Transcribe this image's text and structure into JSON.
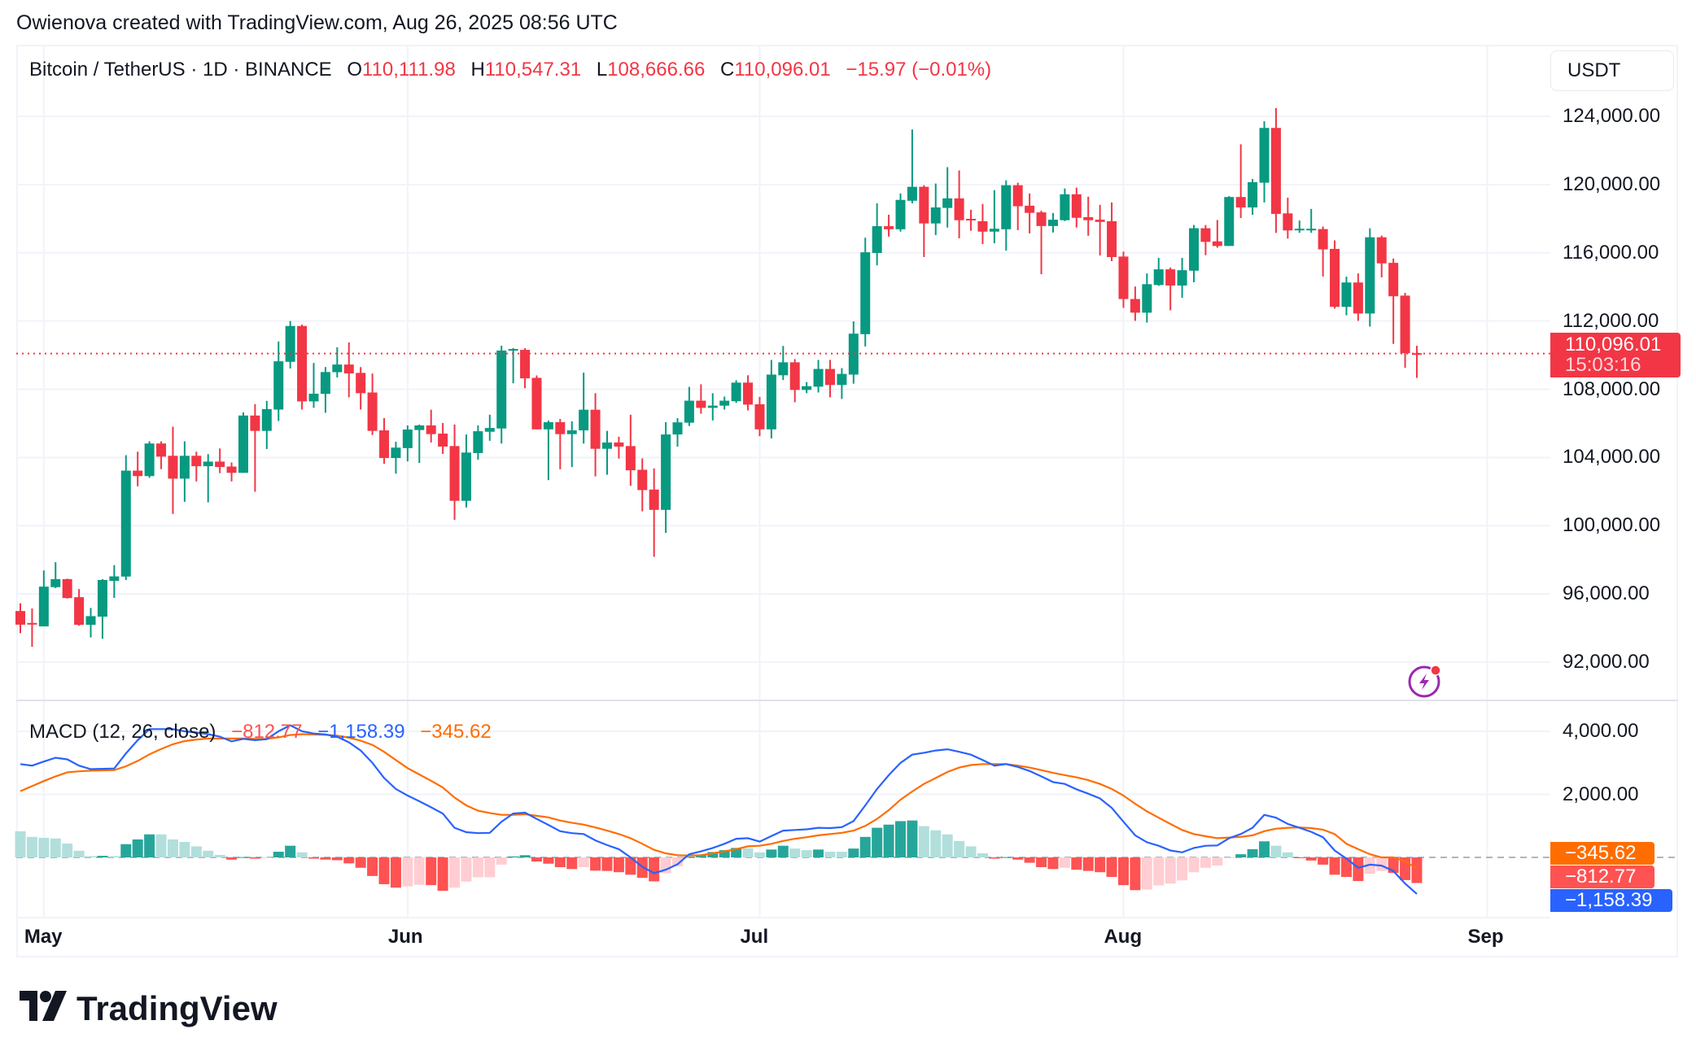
{
  "attribution": "Owienova created with TradingView.com, Aug 26, 2025 08:56 UTC",
  "legend": {
    "symbol": "Bitcoin / TetherUS · 1D · BINANCE",
    "o_label": "O",
    "o": "110,111.98",
    "h_label": "H",
    "h": "110,547.31",
    "l_label": "L",
    "l": "108,666.66",
    "c_label": "C",
    "c": "110,096.01",
    "change": "−15.97 (−0.01%)"
  },
  "currency": "USDT",
  "last_price": {
    "value": "110,096.01",
    "countdown": "15:03:16"
  },
  "macd_legend": {
    "title": "MACD (12, 26, close)",
    "histogram": "−812.77",
    "macd": "−1,158.39",
    "signal": "−345.62"
  },
  "macd_tags": {
    "signal": "−345.62",
    "histogram": "−812.77",
    "macd": "−1,158.39"
  },
  "logo_text": "TradingView",
  "colors": {
    "up": "#089981",
    "down": "#f23645",
    "macd": "#2962ff",
    "signal": "#ff6d00",
    "hist_up_strong": "#26a69a",
    "hist_up_weak": "#b2dfdb",
    "hist_down_strong": "#ff5252",
    "hist_down_weak": "#ffcdd2",
    "grid": "#f0f3fa",
    "alert_icon": "#9c27b0"
  },
  "chart_data": {
    "type": "candlestick",
    "title": "Bitcoin / TetherUS · 1D · BINANCE",
    "xlabel": "",
    "ylabel": "USDT",
    "ylim": [
      90500,
      126500
    ],
    "grid": true,
    "y_ticks": [
      "124,000.00",
      "120,000.00",
      "116,000.00",
      "112,000.00",
      "108,000.00",
      "104,000.00",
      "100,000.00",
      "96,000.00",
      "92,000.00"
    ],
    "y_tick_values": [
      124000,
      120000,
      116000,
      112000,
      108000,
      104000,
      100000,
      96000,
      92000
    ],
    "x_ticks": [
      {
        "label": "May",
        "index": 2
      },
      {
        "label": "Jun",
        "index": 33
      },
      {
        "label": "Jul",
        "index": 63
      },
      {
        "label": "Aug",
        "index": 94
      },
      {
        "label": "Sep",
        "index": 125
      }
    ],
    "last_close": 110096.01,
    "ohlc": [
      [
        95000,
        95450,
        93700,
        94200
      ],
      [
        94300,
        95150,
        92900,
        94250
      ],
      [
        94100,
        97380,
        94100,
        96430
      ],
      [
        96400,
        97860,
        96340,
        96870
      ],
      [
        96870,
        96900,
        95730,
        95760
      ],
      [
        95810,
        96290,
        94140,
        94190
      ],
      [
        94190,
        95180,
        93450,
        94700
      ],
      [
        94670,
        96870,
        93370,
        96820
      ],
      [
        96770,
        97690,
        95770,
        97030
      ],
      [
        97020,
        104130,
        96820,
        103230
      ],
      [
        103230,
        104340,
        102310,
        102910
      ],
      [
        102910,
        104950,
        102810,
        104820
      ],
      [
        104820,
        104950,
        103320,
        104050
      ],
      [
        104100,
        105810,
        100690,
        102760
      ],
      [
        102760,
        104950,
        101400,
        104100
      ],
      [
        104100,
        104340,
        102600,
        103490
      ],
      [
        103490,
        104200,
        101370,
        103760
      ],
      [
        103760,
        104530,
        103080,
        103440
      ],
      [
        103470,
        103710,
        102600,
        103100
      ],
      [
        103100,
        106650,
        103100,
        106460
      ],
      [
        106460,
        107130,
        101990,
        105560
      ],
      [
        105560,
        107320,
        104500,
        106840
      ],
      [
        106810,
        110800,
        106140,
        109640
      ],
      [
        109610,
        112000,
        109220,
        111710
      ],
      [
        111710,
        111790,
        106810,
        107290
      ],
      [
        107290,
        109540,
        106910,
        107740
      ],
      [
        107730,
        109300,
        106620,
        109010
      ],
      [
        109000,
        110460,
        108690,
        109450
      ],
      [
        109450,
        110750,
        107530,
        108930
      ],
      [
        108960,
        109300,
        106810,
        107770
      ],
      [
        107810,
        108920,
        105320,
        105560
      ],
      [
        105590,
        106310,
        103630,
        103970
      ],
      [
        103970,
        104920,
        103050,
        104580
      ],
      [
        104550,
        105880,
        103770,
        105640
      ],
      [
        105610,
        105930,
        103680,
        105880
      ],
      [
        105880,
        106800,
        104880,
        105370
      ],
      [
        105400,
        106020,
        104210,
        104640
      ],
      [
        104670,
        105930,
        100350,
        101460
      ],
      [
        101460,
        105350,
        101070,
        104290
      ],
      [
        104260,
        105880,
        103870,
        105540
      ],
      [
        105510,
        106510,
        104980,
        105730
      ],
      [
        105700,
        110550,
        104820,
        110270
      ],
      [
        110270,
        110410,
        108350,
        110360
      ],
      [
        110310,
        110410,
        108060,
        108640
      ],
      [
        108670,
        108810,
        105650,
        105650
      ],
      [
        105650,
        106170,
        102670,
        106070
      ],
      [
        106070,
        106260,
        103310,
        105370
      ],
      [
        105370,
        106120,
        103440,
        105590
      ],
      [
        105590,
        108980,
        104820,
        106800
      ],
      [
        106800,
        107770,
        102890,
        104510
      ],
      [
        104510,
        105560,
        102990,
        104880
      ],
      [
        104880,
        105220,
        103940,
        104640
      ],
      [
        104670,
        106510,
        102340,
        103250
      ],
      [
        103280,
        103950,
        100840,
        102090
      ],
      [
        102120,
        103360,
        98180,
        100930
      ],
      [
        100930,
        106070,
        99580,
        105350
      ],
      [
        105350,
        106310,
        104640,
        106060
      ],
      [
        106040,
        108140,
        105850,
        107330
      ],
      [
        107330,
        108290,
        106570,
        106910
      ],
      [
        106910,
        107770,
        106170,
        107040
      ],
      [
        107040,
        107570,
        106810,
        107330
      ],
      [
        107300,
        108530,
        107200,
        108390
      ],
      [
        108390,
        108820,
        106760,
        107100
      ],
      [
        107120,
        107550,
        105250,
        105650
      ],
      [
        105650,
        109720,
        105120,
        108860
      ],
      [
        108820,
        110540,
        108540,
        109580
      ],
      [
        109580,
        109770,
        107240,
        107960
      ],
      [
        107960,
        108420,
        107770,
        108180
      ],
      [
        108150,
        109720,
        107810,
        109190
      ],
      [
        109190,
        109720,
        107530,
        108250
      ],
      [
        108250,
        109240,
        107430,
        108900
      ],
      [
        108860,
        111980,
        108330,
        111260
      ],
      [
        111230,
        116880,
        110510,
        116030
      ],
      [
        115990,
        118900,
        115270,
        117560
      ],
      [
        117560,
        118230,
        116950,
        117380
      ],
      [
        117380,
        119480,
        117240,
        119100
      ],
      [
        119050,
        123230,
        118900,
        119870
      ],
      [
        119870,
        119960,
        115750,
        117720
      ],
      [
        117720,
        120060,
        117040,
        118660
      ],
      [
        118630,
        121020,
        117480,
        119190
      ],
      [
        119190,
        120830,
        116850,
        117910
      ],
      [
        117990,
        118520,
        117290,
        117910
      ],
      [
        117850,
        118860,
        116510,
        117240
      ],
      [
        117240,
        119670,
        116560,
        117410
      ],
      [
        117380,
        120250,
        116130,
        119960
      ],
      [
        119960,
        120110,
        117330,
        118730
      ],
      [
        118760,
        119480,
        117140,
        118340
      ],
      [
        118370,
        118470,
        114740,
        117570
      ],
      [
        117570,
        118330,
        117190,
        117940
      ],
      [
        117910,
        119770,
        117860,
        119430
      ],
      [
        119430,
        119820,
        117480,
        118050
      ],
      [
        118090,
        119290,
        117000,
        117910
      ],
      [
        117940,
        118810,
        115840,
        117810
      ],
      [
        117850,
        118950,
        115510,
        115750
      ],
      [
        115780,
        116070,
        112770,
        113290
      ],
      [
        113290,
        114020,
        112010,
        112490
      ],
      [
        112490,
        114790,
        111910,
        114160
      ],
      [
        114110,
        115700,
        114060,
        115030
      ],
      [
        115030,
        115130,
        112630,
        114080
      ],
      [
        114080,
        115700,
        113360,
        114980
      ],
      [
        114950,
        117630,
        114270,
        117440
      ],
      [
        117440,
        117630,
        115860,
        116640
      ],
      [
        116670,
        117920,
        116300,
        116400
      ],
      [
        116400,
        119320,
        116400,
        119270
      ],
      [
        119270,
        122360,
        118040,
        118660
      ],
      [
        118660,
        120330,
        118230,
        120140
      ],
      [
        120110,
        123710,
        118950,
        123320
      ],
      [
        123320,
        124480,
        117170,
        118280
      ],
      [
        118310,
        119230,
        116830,
        117310
      ],
      [
        117380,
        117890,
        117170,
        117410
      ],
      [
        117380,
        118570,
        117170,
        117410
      ],
      [
        117390,
        117540,
        114610,
        116200
      ],
      [
        116230,
        116730,
        112730,
        112830
      ],
      [
        112830,
        114600,
        112340,
        114260
      ],
      [
        114260,
        114790,
        112010,
        112440
      ],
      [
        112440,
        117440,
        111670,
        116910
      ],
      [
        116910,
        117010,
        114560,
        115380
      ],
      [
        115410,
        115660,
        110660,
        113450
      ],
      [
        113490,
        113650,
        109260,
        110112
      ],
      [
        110111.98,
        110547.31,
        108666.66,
        110096.01
      ]
    ],
    "macd_pane": {
      "title": "MACD (12, 26, close)",
      "ylim": [
        -1900,
        4950
      ],
      "y_ticks": [
        "4,000.00",
        "2,000.00"
      ],
      "y_tick_values": [
        4000,
        2000
      ],
      "macd": [
        2960,
        2910,
        3040,
        3160,
        3110,
        2910,
        2800,
        2810,
        2820,
        3300,
        3720,
        4070,
        4070,
        4070,
        4000,
        3960,
        3910,
        3830,
        3680,
        3760,
        3720,
        3750,
        4000,
        4190,
        4000,
        3930,
        3900,
        3830,
        3650,
        3390,
        3000,
        2520,
        2170,
        1960,
        1780,
        1590,
        1390,
        940,
        800,
        770,
        780,
        1130,
        1390,
        1420,
        1220,
        1030,
        830,
        770,
        740,
        540,
        390,
        260,
        0,
        -300,
        -500,
        -390,
        -220,
        100,
        190,
        300,
        430,
        590,
        610,
        500,
        680,
        850,
        870,
        890,
        940,
        930,
        960,
        1150,
        1650,
        2170,
        2610,
        3000,
        3260,
        3320,
        3390,
        3430,
        3350,
        3260,
        3090,
        2910,
        2960,
        2870,
        2740,
        2570,
        2390,
        2330,
        2160,
        2020,
        1870,
        1570,
        1130,
        700,
        480,
        370,
        220,
        160,
        300,
        370,
        380,
        610,
        740,
        940,
        1350,
        1260,
        1060,
        940,
        810,
        640,
        220,
        -40,
        -330,
        -230,
        -260,
        -430,
        -830,
        -1158.39
      ],
      "signal": [
        2100,
        2260,
        2420,
        2570,
        2700,
        2730,
        2750,
        2760,
        2770,
        2890,
        3060,
        3270,
        3440,
        3590,
        3690,
        3740,
        3770,
        3770,
        3770,
        3770,
        3760,
        3760,
        3810,
        3880,
        3910,
        3900,
        3890,
        3860,
        3800,
        3700,
        3570,
        3350,
        3090,
        2830,
        2630,
        2430,
        2220,
        1900,
        1650,
        1480,
        1410,
        1350,
        1350,
        1370,
        1320,
        1270,
        1170,
        1100,
        1040,
        950,
        850,
        740,
        610,
        430,
        240,
        130,
        70,
        60,
        70,
        130,
        190,
        260,
        350,
        370,
        430,
        520,
        590,
        640,
        700,
        740,
        780,
        850,
        1000,
        1220,
        1500,
        1830,
        2090,
        2330,
        2520,
        2710,
        2850,
        2930,
        2960,
        2960,
        2960,
        2910,
        2850,
        2770,
        2680,
        2610,
        2540,
        2450,
        2330,
        2170,
        1960,
        1700,
        1460,
        1260,
        1060,
        870,
        740,
        670,
        610,
        630,
        650,
        700,
        830,
        910,
        940,
        950,
        930,
        880,
        740,
        430,
        260,
        100,
        0,
        0,
        -130,
        -345.62
      ],
      "histogram": [
        830,
        650,
        620,
        600,
        440,
        210,
        40,
        50,
        40,
        420,
        570,
        730,
        730,
        570,
        490,
        350,
        210,
        80,
        -70,
        10,
        -40,
        -10,
        180,
        370,
        160,
        -40,
        -70,
        -90,
        -190,
        -330,
        -590,
        -850,
        -960,
        -920,
        -870,
        -880,
        -1060,
        -960,
        -770,
        -630,
        -630,
        -230,
        30,
        70,
        -130,
        -200,
        -310,
        -370,
        -310,
        -420,
        -430,
        -470,
        -550,
        -650,
        -760,
        -500,
        -280,
        20,
        70,
        170,
        230,
        300,
        290,
        160,
        250,
        370,
        280,
        230,
        250,
        180,
        180,
        280,
        650,
        940,
        1040,
        1150,
        1170,
        990,
        860,
        730,
        520,
        350,
        130,
        -40,
        10,
        -70,
        -170,
        -310,
        -370,
        -330,
        -390,
        -430,
        -470,
        -620,
        -880,
        -1040,
        -1020,
        -890,
        -830,
        -730,
        -470,
        -330,
        -260,
        -20,
        100,
        260,
        510,
        370,
        160,
        -10,
        -100,
        -230,
        -550,
        -620,
        -750,
        -520,
        -430,
        -490,
        -720,
        -812.77
      ]
    }
  }
}
